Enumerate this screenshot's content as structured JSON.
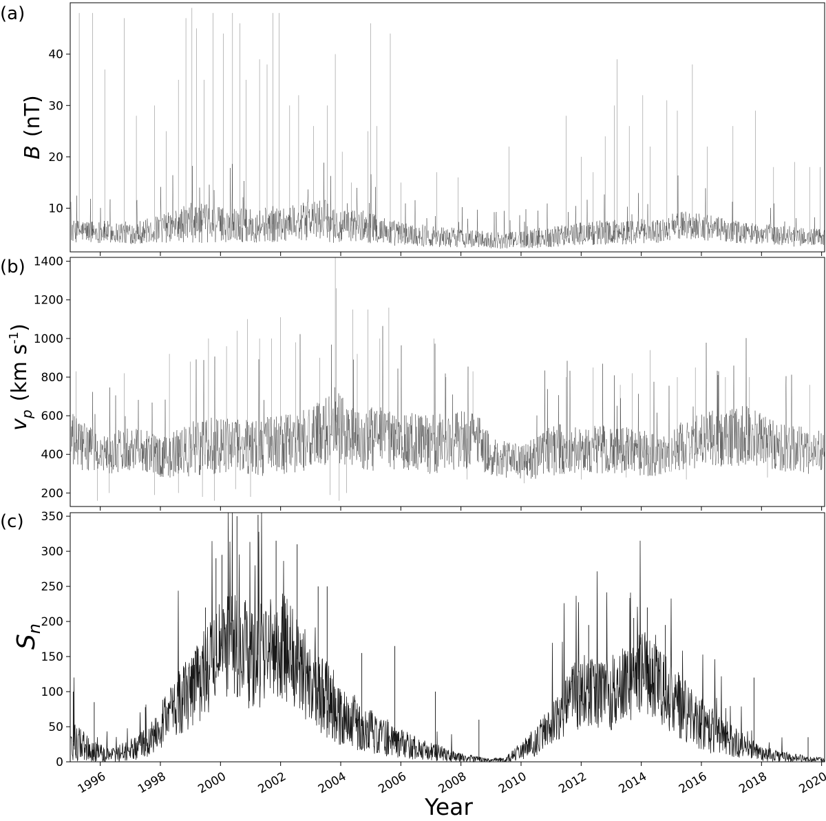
{
  "chart_data": [
    {
      "type": "line",
      "panel_label": "(a)",
      "ylabel": {
        "symbol": "B",
        "unit": "(nT)"
      },
      "xlim": [
        1995.0,
        2020.1
      ],
      "ylim": [
        1.5,
        50
      ],
      "yticks": [
        10,
        20,
        30,
        40
      ],
      "ytick_labels": [
        "10",
        "20",
        "30",
        "40"
      ],
      "grid": false,
      "line_color": "#000000",
      "series": [
        {
          "x": [
            1995.0,
            1995.5,
            1996.0,
            1996.5,
            1997.0,
            1997.5,
            1998.0,
            1998.5,
            1999.0,
            1999.5,
            2000.0,
            2000.5,
            2001.0,
            2001.5,
            2002.0,
            2002.5,
            2003.0,
            2003.5,
            2003.9,
            2004.0,
            2004.5,
            2005.0,
            2005.5,
            2006.0,
            2006.5,
            2007.0,
            2007.5,
            2008.0,
            2008.5,
            2009.0,
            2009.5,
            2010.0,
            2010.5,
            2011.0,
            2011.5,
            2012.0,
            2012.5,
            2013.0,
            2013.5,
            2014.0,
            2014.5,
            2014.9,
            2015.0,
            2015.5,
            2016.0,
            2016.5,
            2017.0,
            2017.5,
            2018.0,
            2018.5,
            2019.0,
            2019.5,
            2020.0
          ],
          "mean": [
            5.5,
            5.6,
            5.4,
            5.3,
            5.2,
            5.5,
            6.0,
            6.5,
            7.2,
            7.0,
            6.8,
            6.9,
            6.5,
            6.8,
            7.0,
            7.3,
            7.5,
            7.8,
            6.2,
            6.0,
            6.8,
            6.2,
            5.5,
            5.0,
            4.8,
            4.6,
            4.4,
            4.2,
            4.0,
            3.8,
            3.7,
            3.9,
            4.2,
            4.5,
            4.8,
            5.0,
            5.2,
            5.3,
            5.4,
            5.5,
            5.6,
            5.7,
            6.5,
            6.8,
            6.5,
            6.0,
            5.5,
            5.2,
            5.0,
            4.8,
            4.5,
            4.3,
            4.3
          ],
          "spread": [
            2.0,
            2.0,
            2.0,
            2.0,
            2.0,
            2.2,
            2.5,
            3.0,
            3.5,
            3.5,
            3.2,
            3.2,
            3.0,
            3.2,
            3.2,
            3.2,
            3.5,
            3.5,
            3.5,
            3.0,
            3.0,
            2.8,
            2.5,
            2.2,
            2.0,
            2.0,
            1.8,
            1.8,
            1.5,
            1.5,
            1.5,
            1.5,
            1.8,
            2.0,
            2.0,
            2.2,
            2.2,
            2.2,
            2.2,
            2.2,
            2.2,
            2.2,
            2.5,
            2.5,
            2.5,
            2.2,
            2.0,
            2.0,
            1.8,
            1.8,
            1.8,
            1.6,
            1.6
          ],
          "gaps": [
            [
              2014.95,
              2015.0
            ]
          ]
        }
      ],
      "peaks": [
        [
          1995.3,
          48
        ],
        [
          1995.75,
          48
        ],
        [
          1996.15,
          37
        ],
        [
          1996.8,
          47
        ],
        [
          1997.2,
          28
        ],
        [
          1997.8,
          30
        ],
        [
          1998.2,
          25
        ],
        [
          1998.6,
          35
        ],
        [
          1998.85,
          47
        ],
        [
          1999.05,
          49
        ],
        [
          1999.2,
          45
        ],
        [
          1999.45,
          35
        ],
        [
          1999.75,
          48
        ],
        [
          2000.1,
          44
        ],
        [
          2000.4,
          48
        ],
        [
          2000.65,
          46
        ],
        [
          2000.85,
          35
        ],
        [
          2001.3,
          39
        ],
        [
          2001.55,
          38
        ],
        [
          2001.75,
          48
        ],
        [
          2001.95,
          48
        ],
        [
          2002.3,
          30
        ],
        [
          2002.6,
          32
        ],
        [
          2003.1,
          26
        ],
        [
          2003.55,
          30
        ],
        [
          2003.82,
          40
        ],
        [
          2004.05,
          21
        ],
        [
          2004.35,
          15
        ],
        [
          2004.9,
          25
        ],
        [
          2005.0,
          46
        ],
        [
          2005.2,
          26
        ],
        [
          2005.65,
          44
        ],
        [
          2006.0,
          15
        ],
        [
          2007.2,
          17
        ],
        [
          2007.9,
          16
        ],
        [
          2009.6,
          22
        ],
        [
          2011.5,
          28
        ],
        [
          2012.0,
          20
        ],
        [
          2012.4,
          17
        ],
        [
          2012.8,
          24
        ],
        [
          2013.1,
          30
        ],
        [
          2013.2,
          39
        ],
        [
          2013.6,
          26
        ],
        [
          2014.05,
          32
        ],
        [
          2014.3,
          22
        ],
        [
          2014.85,
          31
        ],
        [
          2015.2,
          29
        ],
        [
          2015.7,
          38
        ],
        [
          2016.2,
          22
        ],
        [
          2017.05,
          26
        ],
        [
          2017.8,
          29
        ],
        [
          2018.4,
          18
        ],
        [
          2019.1,
          19
        ],
        [
          2019.6,
          18
        ],
        [
          2019.95,
          18
        ]
      ]
    },
    {
      "type": "line",
      "panel_label": "(b)",
      "ylabel": {
        "symbol": "v",
        "subscript": "p",
        "unit_prefix": "(km s",
        "unit_exponent": "-1",
        "unit_suffix": ")"
      },
      "xlim": [
        1995.0,
        2020.1
      ],
      "ylim": [
        130,
        1420
      ],
      "yticks": [
        200,
        400,
        600,
        800,
        1000,
        1200,
        1400
      ],
      "ytick_labels": [
        "200",
        "400",
        "600",
        "800",
        "1000",
        "1200",
        "1400"
      ],
      "grid": false,
      "line_color": "#000000",
      "series": [
        {
          "x": [
            1995.0,
            1995.5,
            1996.0,
            1996.5,
            1997.0,
            1997.5,
            1998.0,
            1998.5,
            1999.0,
            1999.5,
            2000.0,
            2000.5,
            2001.0,
            2001.5,
            2002.0,
            2002.5,
            2003.0,
            2003.5,
            2003.8,
            2004.0,
            2004.3,
            2004.6,
            2005.0,
            2005.5,
            2006.0,
            2006.5,
            2007.0,
            2007.5,
            2008.0,
            2008.5,
            2009.0,
            2009.5,
            2010.0,
            2010.5,
            2011.0,
            2011.5,
            2012.0,
            2012.5,
            2013.0,
            2013.5,
            2014.0,
            2014.5,
            2014.9,
            2015.0,
            2015.5,
            2016.0,
            2016.5,
            2017.0,
            2017.5,
            2018.0,
            2018.5,
            2019.0,
            2019.5,
            2020.0
          ],
          "mean": [
            470,
            440,
            400,
            410,
            440,
            430,
            380,
            400,
            430,
            440,
            450,
            440,
            450,
            440,
            450,
            460,
            480,
            520,
            580,
            520,
            480,
            470,
            480,
            480,
            470,
            460,
            450,
            460,
            470,
            500,
            380,
            370,
            360,
            380,
            420,
            430,
            440,
            430,
            420,
            420,
            410,
            390,
            390,
            430,
            450,
            470,
            480,
            490,
            500,
            470,
            440,
            430,
            420,
            410
          ],
          "spread": [
            140,
            110,
            90,
            100,
            110,
            110,
            90,
            110,
            130,
            130,
            140,
            130,
            140,
            140,
            140,
            140,
            150,
            160,
            170,
            180,
            150,
            140,
            150,
            150,
            140,
            140,
            140,
            140,
            140,
            150,
            90,
            90,
            80,
            100,
            120,
            120,
            120,
            120,
            110,
            110,
            110,
            100,
            100,
            110,
            120,
            130,
            140,
            140,
            140,
            130,
            120,
            110,
            110,
            100
          ],
          "gaps": [
            [
              2014.93,
              2014.99
            ]
          ]
        }
      ],
      "peaks": [
        [
          1995.2,
          830
        ],
        [
          1996.8,
          820
        ],
        [
          1998.3,
          920
        ],
        [
          1999.0,
          880
        ],
        [
          1999.6,
          1000
        ],
        [
          2000.2,
          960
        ],
        [
          2000.55,
          1040
        ],
        [
          2000.9,
          1100
        ],
        [
          2001.3,
          1000
        ],
        [
          2001.7,
          1000
        ],
        [
          2002.0,
          1110
        ],
        [
          2002.5,
          980
        ],
        [
          2003.3,
          900
        ],
        [
          2003.82,
          1420
        ],
        [
          2003.85,
          1260
        ],
        [
          2004.4,
          1150
        ],
        [
          2004.55,
          920
        ],
        [
          2004.9,
          1150
        ],
        [
          2005.3,
          1000
        ],
        [
          2005.6,
          1160
        ],
        [
          2007.1,
          1000
        ],
        [
          2007.5,
          800
        ],
        [
          2008.4,
          830
        ],
        [
          2011.5,
          800
        ],
        [
          2012.4,
          850
        ],
        [
          2013.3,
          760
        ],
        [
          2013.7,
          820
        ],
        [
          2014.3,
          940
        ],
        [
          2015.2,
          800
        ],
        [
          2015.8,
          850
        ],
        [
          2016.8,
          800
        ],
        [
          2017.6,
          800
        ],
        [
          2019.6,
          760
        ]
      ],
      "troughs": [
        [
          1995.9,
          160
        ],
        [
          1996.3,
          200
        ],
        [
          1997.8,
          190
        ],
        [
          1998.6,
          200
        ],
        [
          1999.4,
          180
        ],
        [
          1999.8,
          160
        ],
        [
          2000.5,
          220
        ],
        [
          2001.0,
          180
        ],
        [
          2003.65,
          190
        ],
        [
          2003.95,
          160
        ],
        [
          2004.2,
          200
        ],
        [
          2008.2,
          270
        ],
        [
          2010.1,
          250
        ],
        [
          2012.0,
          270
        ],
        [
          2013.5,
          280
        ],
        [
          2015.5,
          270
        ],
        [
          2018.2,
          280
        ]
      ]
    },
    {
      "type": "line",
      "panel_label": "(c)",
      "ylabel": {
        "symbol": "S",
        "subscript": "n"
      },
      "xlabel": "Year",
      "xlim": [
        1995.0,
        2020.1
      ],
      "ylim": [
        0,
        355
      ],
      "xticks": [
        1996,
        1998,
        2000,
        2002,
        2004,
        2006,
        2008,
        2010,
        2012,
        2014,
        2016,
        2018,
        2020
      ],
      "xtick_labels": [
        "1996",
        "1998",
        "2000",
        "2002",
        "2004",
        "2006",
        "2008",
        "2010",
        "2012",
        "2014",
        "2016",
        "2018",
        "2020"
      ],
      "yticks": [
        0,
        50,
        100,
        150,
        200,
        250,
        300,
        350
      ],
      "ytick_labels": [
        "0",
        "50",
        "100",
        "150",
        "200",
        "250",
        "300",
        "350"
      ],
      "grid": false,
      "line_color": "#000000",
      "series": [
        {
          "x": [
            1995.0,
            1995.5,
            1996.0,
            1996.5,
            1997.0,
            1997.5,
            1998.0,
            1998.5,
            1999.0,
            1999.5,
            2000.0,
            2000.5,
            2001.0,
            2001.5,
            2002.0,
            2002.5,
            2003.0,
            2003.5,
            2004.0,
            2004.5,
            2005.0,
            2005.5,
            2006.0,
            2006.5,
            2007.0,
            2007.5,
            2008.0,
            2008.5,
            2009.0,
            2009.5,
            2010.0,
            2010.5,
            2011.0,
            2011.5,
            2012.0,
            2012.5,
            2013.0,
            2013.5,
            2014.0,
            2014.5,
            2015.0,
            2015.5,
            2016.0,
            2016.5,
            2017.0,
            2017.5,
            2018.0,
            2018.5,
            2019.0,
            2019.5,
            2020.0
          ],
          "mean": [
            30,
            22,
            12,
            10,
            18,
            25,
            50,
            80,
            100,
            130,
            160,
            165,
            150,
            155,
            165,
            150,
            110,
            90,
            70,
            55,
            45,
            35,
            25,
            20,
            15,
            10,
            6,
            4,
            2,
            4,
            16,
            30,
            50,
            80,
            100,
            95,
            100,
            110,
            130,
            120,
            90,
            70,
            55,
            40,
            30,
            20,
            12,
            9,
            6,
            4,
            3
          ],
          "spread": [
            25,
            20,
            12,
            10,
            15,
            20,
            30,
            40,
            50,
            60,
            70,
            70,
            70,
            70,
            70,
            70,
            55,
            50,
            45,
            35,
            30,
            25,
            20,
            15,
            12,
            10,
            6,
            4,
            2,
            4,
            12,
            20,
            30,
            40,
            50,
            45,
            50,
            50,
            55,
            55,
            45,
            40,
            35,
            28,
            22,
            15,
            10,
            8,
            6,
            4,
            3
          ]
        }
      ],
      "peaks": [
        [
          1995.1,
          100
        ],
        [
          1995.8,
          85
        ],
        [
          1997.5,
          78
        ],
        [
          1999.5,
          220
        ],
        [
          1999.85,
          290
        ],
        [
          2000.05,
          295
        ],
        [
          2000.55,
          350
        ],
        [
          2001.25,
          352
        ],
        [
          2001.85,
          315
        ],
        [
          2002.55,
          310
        ],
        [
          2003.25,
          250
        ],
        [
          2003.55,
          250
        ],
        [
          2004.7,
          155
        ],
        [
          2005.8,
          165
        ],
        [
          2007.15,
          100
        ],
        [
          2008.6,
          60
        ],
        [
          2012.25,
          195
        ],
        [
          2013.75,
          205
        ],
        [
          2014.2,
          220
        ],
        [
          2014.8,
          195
        ],
        [
          2017.75,
          120
        ],
        [
          2019.55,
          35
        ]
      ]
    }
  ]
}
